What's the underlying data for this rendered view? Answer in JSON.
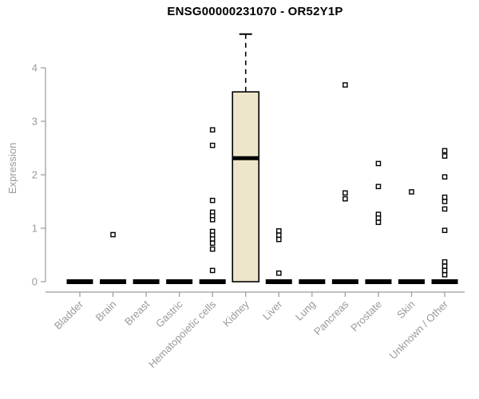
{
  "chart_data": {
    "type": "box",
    "title": "ENSG00000231070 - OR52Y1P",
    "ylabel": "Expression",
    "xlabel": "",
    "ylim": [
      0,
      4.7
    ],
    "yticks": [
      0,
      1,
      2,
      3,
      4
    ],
    "grid": false,
    "legend": "none",
    "box_fill_color": "#EDE6CB",
    "box_stroke_color": "#000000",
    "axis_color": "#9A9A9A",
    "outlier_marker": "open-square",
    "categories": [
      "Bladder",
      "Brain",
      "Breast",
      "Gastric",
      "Hematopoietic cells",
      "Kidney",
      "Liver",
      "Lung",
      "Pancreas",
      "Prostate",
      "Skin",
      "Unknown / Other"
    ],
    "boxes": [
      {
        "category": "Bladder",
        "whisker_low": 0,
        "q1": 0,
        "median": 0,
        "q3": 0,
        "whisker_high": 0,
        "outliers": []
      },
      {
        "category": "Brain",
        "whisker_low": 0,
        "q1": 0,
        "median": 0,
        "q3": 0,
        "whisker_high": 0,
        "outliers": [
          0.88
        ]
      },
      {
        "category": "Breast",
        "whisker_low": 0,
        "q1": 0,
        "median": 0,
        "q3": 0,
        "whisker_high": 0,
        "outliers": []
      },
      {
        "category": "Gastric",
        "whisker_low": 0,
        "q1": 0,
        "median": 0,
        "q3": 0,
        "whisker_high": 0,
        "outliers": []
      },
      {
        "category": "Hematopoietic cells",
        "whisker_low": 0,
        "q1": 0,
        "median": 0,
        "q3": 0,
        "whisker_high": 0,
        "outliers": [
          2.84,
          2.55,
          1.52,
          1.3,
          1.23,
          1.16,
          0.94,
          0.87,
          0.8,
          0.72,
          0.61,
          0.21
        ]
      },
      {
        "category": "Kidney",
        "whisker_low": 0,
        "q1": 0,
        "median": 2.31,
        "q3": 3.55,
        "whisker_high": 4.63,
        "outliers": []
      },
      {
        "category": "Liver",
        "whisker_low": 0,
        "q1": 0,
        "median": 0,
        "q3": 0,
        "whisker_high": 0,
        "outliers": [
          0.95,
          0.87,
          0.79,
          0.16
        ]
      },
      {
        "category": "Lung",
        "whisker_low": 0,
        "q1": 0,
        "median": 0,
        "q3": 0,
        "whisker_high": 0,
        "outliers": []
      },
      {
        "category": "Pancreas",
        "whisker_low": 0,
        "q1": 0,
        "median": 0,
        "q3": 0,
        "whisker_high": 0,
        "outliers": [
          3.68,
          1.66,
          1.55
        ]
      },
      {
        "category": "Prostate",
        "whisker_low": 0,
        "q1": 0,
        "median": 0,
        "q3": 0,
        "whisker_high": 0,
        "outliers": [
          2.21,
          1.78,
          1.26,
          1.19,
          1.11
        ]
      },
      {
        "category": "Skin",
        "whisker_low": 0,
        "q1": 0,
        "median": 0,
        "q3": 0,
        "whisker_high": 0,
        "outliers": [
          1.68
        ]
      },
      {
        "category": "Unknown / Other",
        "whisker_low": 0,
        "q1": 0,
        "median": 0,
        "q3": 0,
        "whisker_high": 0,
        "outliers": [
          2.45,
          2.35,
          1.96,
          1.58,
          1.5,
          1.36,
          0.96,
          0.37,
          0.29,
          0.21,
          0.13
        ]
      }
    ]
  }
}
